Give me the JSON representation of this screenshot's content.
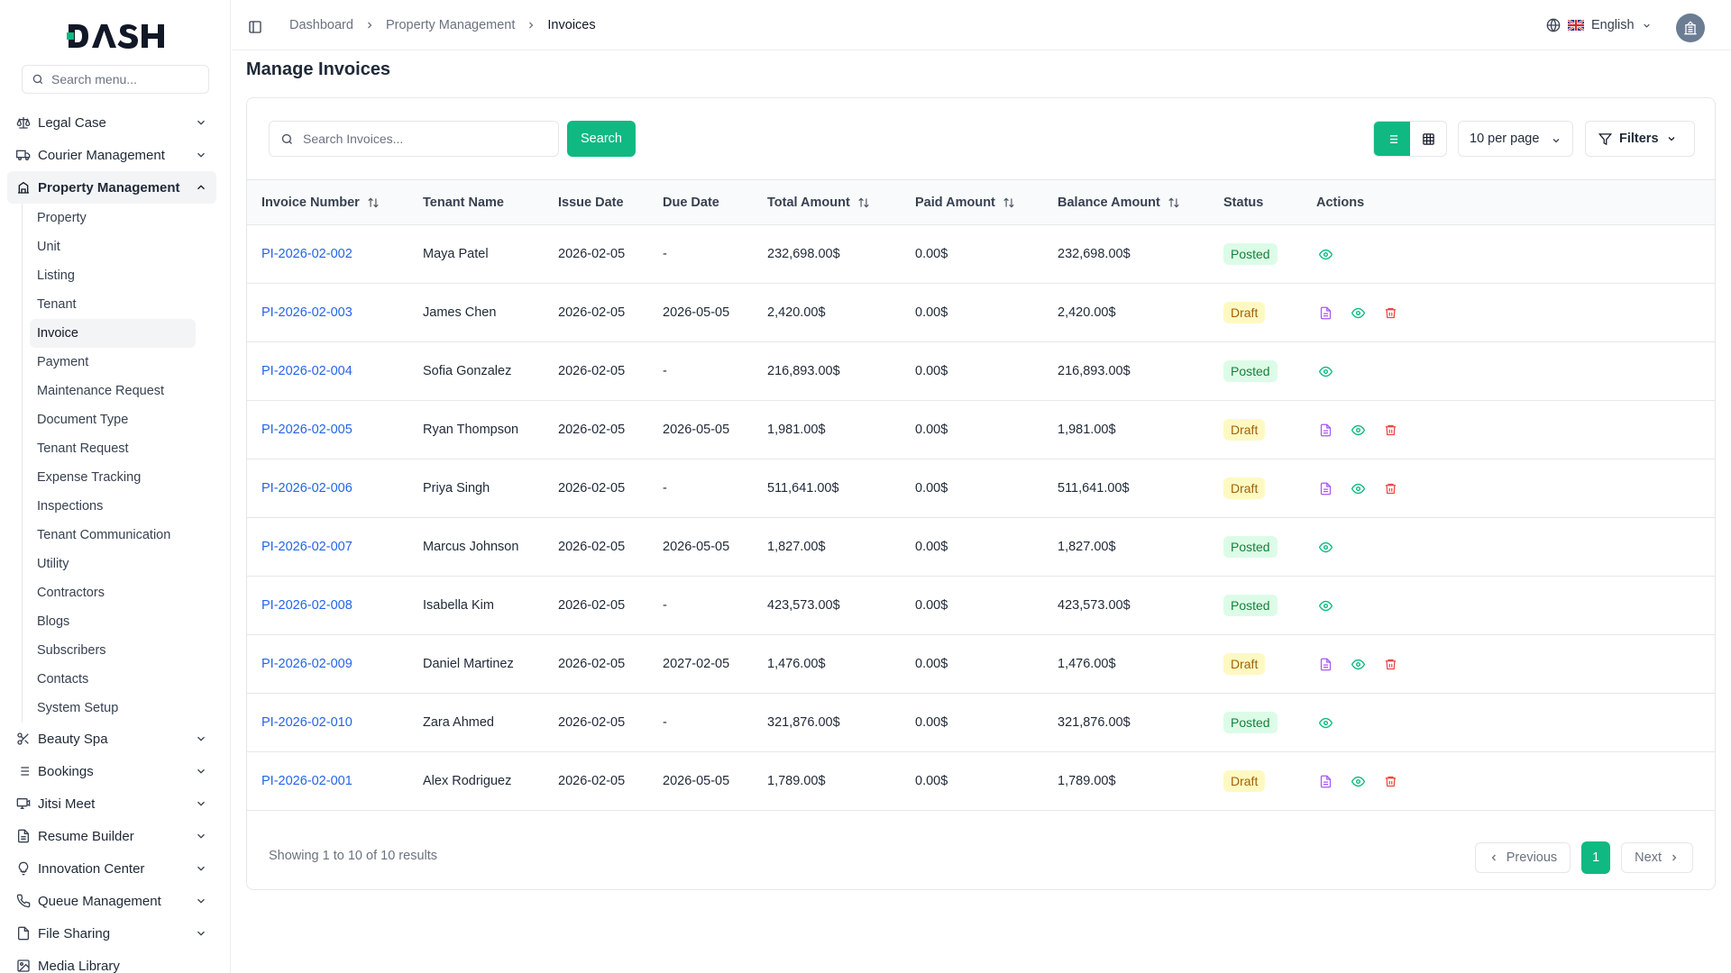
{
  "brand": {
    "logo_text": "DASH",
    "accent": "#10b981"
  },
  "sidebar": {
    "search_placeholder": "Search menu...",
    "items_top": [
      {
        "label": "Legal Case",
        "icon": "scale-icon"
      },
      {
        "label": "Courier Management",
        "icon": "truck-icon"
      },
      {
        "label": "Property Management",
        "icon": "building-icon",
        "expanded": true
      }
    ],
    "sub_items": [
      "Property",
      "Unit",
      "Listing",
      "Tenant",
      "Invoice",
      "Payment",
      "Maintenance Request",
      "Document Type",
      "Tenant Request",
      "Expense Tracking",
      "Inspections",
      "Tenant Communication",
      "Utility",
      "Contractors",
      "Blogs",
      "Subscribers",
      "Contacts",
      "System Setup"
    ],
    "active_sub": "Invoice",
    "items_bottom": [
      {
        "label": "Beauty Spa",
        "icon": "scissors-icon"
      },
      {
        "label": "Bookings",
        "icon": "list-icon"
      },
      {
        "label": "Jitsi Meet",
        "icon": "monitor-icon"
      },
      {
        "label": "Resume Builder",
        "icon": "file-icon"
      },
      {
        "label": "Innovation Center",
        "icon": "lightbulb-icon"
      },
      {
        "label": "Queue Management",
        "icon": "phone-icon"
      },
      {
        "label": "File Sharing",
        "icon": "file-share-icon"
      },
      {
        "label": "Media Library",
        "icon": "image-icon"
      }
    ]
  },
  "topbar": {
    "breadcrumbs": [
      "Dashboard",
      "Property Management",
      "Invoices"
    ],
    "language": "English"
  },
  "main": {
    "title": "Manage Invoices",
    "search_placeholder": "Search Invoices...",
    "search_button": "Search",
    "per_page": "10 per page",
    "filters_label": "Filters",
    "columns": [
      "Invoice Number",
      "Tenant Name",
      "Issue Date",
      "Due Date",
      "Total Amount",
      "Paid Amount",
      "Balance Amount",
      "Status",
      "Actions"
    ],
    "rows": [
      {
        "invoice": "PI-2026-02-002",
        "tenant": "Maya Patel",
        "issue": "2026-02-05",
        "due": "-",
        "total": "232,698.00$",
        "paid": "0.00$",
        "balance": "232,698.00$",
        "status": "Posted"
      },
      {
        "invoice": "PI-2026-02-003",
        "tenant": "James Chen",
        "issue": "2026-02-05",
        "due": "2026-05-05",
        "total": "2,420.00$",
        "paid": "0.00$",
        "balance": "2,420.00$",
        "status": "Draft"
      },
      {
        "invoice": "PI-2026-02-004",
        "tenant": "Sofia Gonzalez",
        "issue": "2026-02-05",
        "due": "-",
        "total": "216,893.00$",
        "paid": "0.00$",
        "balance": "216,893.00$",
        "status": "Posted"
      },
      {
        "invoice": "PI-2026-02-005",
        "tenant": "Ryan Thompson",
        "issue": "2026-02-05",
        "due": "2026-05-05",
        "total": "1,981.00$",
        "paid": "0.00$",
        "balance": "1,981.00$",
        "status": "Draft"
      },
      {
        "invoice": "PI-2026-02-006",
        "tenant": "Priya Singh",
        "issue": "2026-02-05",
        "due": "-",
        "total": "511,641.00$",
        "paid": "0.00$",
        "balance": "511,641.00$",
        "status": "Draft"
      },
      {
        "invoice": "PI-2026-02-007",
        "tenant": "Marcus Johnson",
        "issue": "2026-02-05",
        "due": "2026-05-05",
        "total": "1,827.00$",
        "paid": "0.00$",
        "balance": "1,827.00$",
        "status": "Posted"
      },
      {
        "invoice": "PI-2026-02-008",
        "tenant": "Isabella Kim",
        "issue": "2026-02-05",
        "due": "-",
        "total": "423,573.00$",
        "paid": "0.00$",
        "balance": "423,573.00$",
        "status": "Posted"
      },
      {
        "invoice": "PI-2026-02-009",
        "tenant": "Daniel Martinez",
        "issue": "2026-02-05",
        "due": "2027-02-05",
        "total": "1,476.00$",
        "paid": "0.00$",
        "balance": "1,476.00$",
        "status": "Draft"
      },
      {
        "invoice": "PI-2026-02-010",
        "tenant": "Zara Ahmed",
        "issue": "2026-02-05",
        "due": "-",
        "total": "321,876.00$",
        "paid": "0.00$",
        "balance": "321,876.00$",
        "status": "Posted"
      },
      {
        "invoice": "PI-2026-02-001",
        "tenant": "Alex Rodriguez",
        "issue": "2026-02-05",
        "due": "2026-05-05",
        "total": "1,789.00$",
        "paid": "0.00$",
        "balance": "1,789.00$",
        "status": "Draft"
      }
    ],
    "showing": "Showing 1 to 10 of 10 results",
    "pager": {
      "previous": "Previous",
      "current": "1",
      "next": "Next"
    }
  }
}
